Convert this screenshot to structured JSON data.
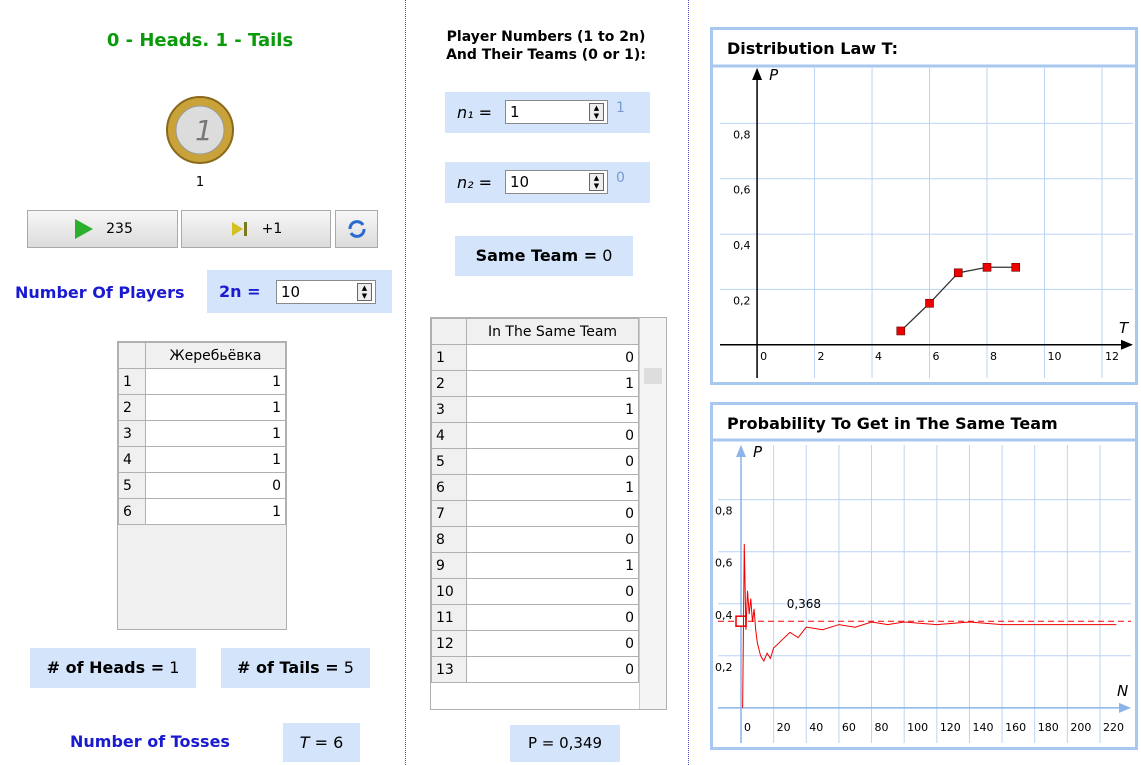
{
  "left": {
    "title": "0 - Heads. 1 - Tails",
    "coin_label": "1",
    "play_button": "235",
    "step_button": "+1",
    "players_label": "Number Of Players",
    "players_var": "2n =",
    "players_input": "10",
    "table": {
      "header": "Жеребьёвка",
      "rows": [
        1,
        2,
        3,
        4,
        5,
        6
      ],
      "values": [
        1,
        1,
        1,
        1,
        0,
        1
      ]
    },
    "heads_label": "# of Heads =",
    "heads": 1,
    "tails_label": "# of Tails =",
    "tails": 5,
    "tosses_label": "Number of Tosses",
    "tosses_var": "T =",
    "tosses": 6
  },
  "middle": {
    "title_line1": "Player Numbers (1 to 2n)",
    "title_line2": "And Their Teams (0 or 1):",
    "n1_label": "n₁ =",
    "n1_input": "1",
    "n1_team": 1,
    "n2_label": "n₂ =",
    "n2_input": "10",
    "n2_team": 0,
    "same_team_label": "Same Team =",
    "same_team": 0,
    "table": {
      "header": "In The Same Team",
      "rows": [
        1,
        2,
        3,
        4,
        5,
        6,
        7,
        8,
        9,
        10,
        11,
        12,
        13
      ],
      "values": [
        0,
        1,
        1,
        0,
        0,
        1,
        0,
        0,
        1,
        0,
        0,
        0,
        0
      ]
    },
    "p_label": "P = 0,349"
  },
  "chart_data": [
    {
      "type": "line",
      "title": "Distribution Law T:",
      "x_label": "T",
      "y_label": "P",
      "x": [
        5,
        6,
        7,
        8,
        9
      ],
      "values": [
        0.05,
        0.15,
        0.26,
        0.28,
        0.28
      ],
      "color": "#333333",
      "marker_color": "#ee0000",
      "xlim": [
        -1.29,
        13.08
      ],
      "ylim": [
        -0.12,
        1.0
      ],
      "xticks": [
        0,
        2,
        4,
        6,
        8,
        10,
        12
      ],
      "yticks": [
        {
          "value": 0.2,
          "label": "0,2"
        },
        {
          "value": 0.4,
          "label": "0,4"
        },
        {
          "value": 0.6,
          "label": "0,6"
        },
        {
          "value": 0.8,
          "label": "0,8"
        }
      ],
      "grid": true
    },
    {
      "type": "line",
      "title": "Probability To Get in The Same Team",
      "x_label": "N",
      "y_label": "P",
      "x": [
        1,
        2,
        3,
        4,
        5,
        6,
        7,
        8,
        9,
        10,
        12,
        14,
        16,
        18,
        20,
        25,
        30,
        35,
        40,
        50,
        60,
        70,
        80,
        90,
        100,
        120,
        140,
        160,
        180,
        200,
        220,
        230
      ],
      "values": [
        0,
        0.63,
        0.3,
        0.45,
        0.36,
        0.42,
        0.33,
        0.38,
        0.3,
        0.25,
        0.2,
        0.18,
        0.21,
        0.19,
        0.23,
        0.26,
        0.29,
        0.27,
        0.31,
        0.3,
        0.32,
        0.31,
        0.33,
        0.32,
        0.33,
        0.32,
        0.33,
        0.32,
        0.32,
        0.32,
        0.32,
        0.32
      ],
      "color": "#ee0000",
      "reference": 0.333,
      "annotation": "0,368",
      "xlim": [
        -14.1,
        239
      ],
      "ylim": [
        -0.135,
        1.01
      ],
      "xticks": [
        0,
        20,
        40,
        60,
        80,
        100,
        120,
        140,
        160,
        180,
        200,
        220
      ],
      "yticks": [
        {
          "value": 0.2,
          "label": "0,2"
        },
        {
          "value": 0.4,
          "label": "0,4"
        },
        {
          "value": 0.6,
          "label": "0,6"
        },
        {
          "value": 0.8,
          "label": "0,8"
        }
      ],
      "grid": true
    }
  ]
}
